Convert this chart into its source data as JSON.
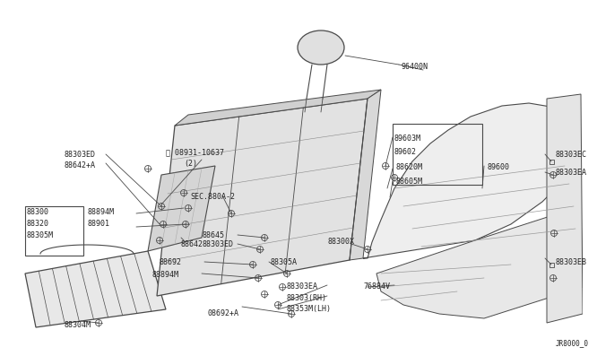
{
  "bg_color": "#ffffff",
  "line_color": "#4a4a4a",
  "text_color": "#222222",
  "watermark": "JR8000_0",
  "fig_width": 6.4,
  "fig_height": 3.72
}
